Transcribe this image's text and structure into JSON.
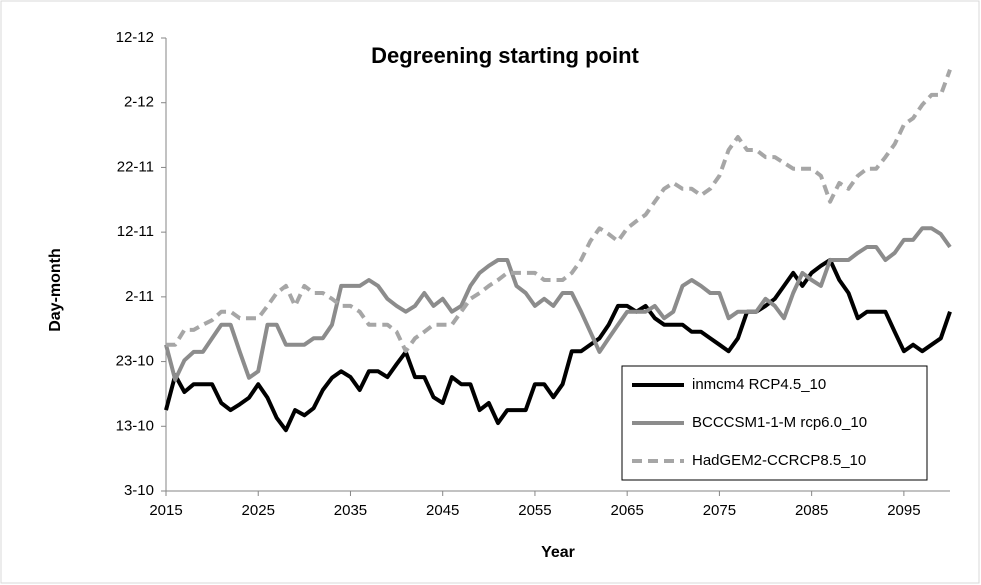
{
  "chart_data": {
    "type": "line",
    "title": "Degreening starting point",
    "x_label": "Year",
    "y_label": "Day-month",
    "x": [
      2015,
      2016,
      2017,
      2018,
      2019,
      2020,
      2021,
      2022,
      2023,
      2024,
      2025,
      2026,
      2027,
      2028,
      2029,
      2030,
      2031,
      2032,
      2033,
      2034,
      2035,
      2036,
      2037,
      2038,
      2039,
      2040,
      2041,
      2042,
      2043,
      2044,
      2045,
      2046,
      2047,
      2048,
      2049,
      2050,
      2051,
      2052,
      2053,
      2054,
      2055,
      2056,
      2057,
      2058,
      2059,
      2060,
      2061,
      2062,
      2063,
      2064,
      2065,
      2066,
      2067,
      2068,
      2069,
      2070,
      2071,
      2072,
      2073,
      2074,
      2075,
      2076,
      2077,
      2078,
      2079,
      2080,
      2081,
      2082,
      2083,
      2084,
      2085,
      2086,
      2087,
      2088,
      2089,
      2090,
      2091,
      2092,
      2093,
      2094,
      2095,
      2096,
      2097,
      2098,
      2099,
      2100
    ],
    "xlim": [
      2015,
      2100
    ],
    "xticks": [
      2015,
      2025,
      2035,
      2045,
      2055,
      2065,
      2075,
      2085,
      2095
    ],
    "ylim": [
      276,
      346
    ],
    "yticks": [
      {
        "value": 276,
        "label": "3-10"
      },
      {
        "value": 286,
        "label": "13-10"
      },
      {
        "value": 296,
        "label": "23-10"
      },
      {
        "value": 306,
        "label": "2-11"
      },
      {
        "value": 316,
        "label": "12-11"
      },
      {
        "value": 326,
        "label": "22-11"
      },
      {
        "value": 336,
        "label": "2-12"
      },
      {
        "value": 346,
        "label": "12-12"
      }
    ],
    "legend": "lower right",
    "series": [
      {
        "name": "inmcm4 RCP4.5_10",
        "color": "#000000",
        "dashed": false,
        "values": [
          288.5,
          293.9,
          291.3,
          292.5,
          292.5,
          292.5,
          289.6,
          288.5,
          289.4,
          290.4,
          292.5,
          290.4,
          287.3,
          285.4,
          288.5,
          287.7,
          288.8,
          291.6,
          293.5,
          294.5,
          293.6,
          291.6,
          294.5,
          294.5,
          293.6,
          295.6,
          297.5,
          293.6,
          293.6,
          290.5,
          289.6,
          293.6,
          292.5,
          292.5,
          288.5,
          289.6,
          286.5,
          288.5,
          288.5,
          288.5,
          292.5,
          292.5,
          290.5,
          292.5,
          297.6,
          297.6,
          298.6,
          299.6,
          301.7,
          304.6,
          304.6,
          303.7,
          304.6,
          302.7,
          301.7,
          301.7,
          301.7,
          300.6,
          300.6,
          299.6,
          298.6,
          297.6,
          299.6,
          303.7,
          303.7,
          304.6,
          305.7,
          307.7,
          309.7,
          307.7,
          309.7,
          310.8,
          311.7,
          308.6,
          306.6,
          302.7,
          303.7,
          303.7,
          303.7,
          300.6,
          297.6,
          298.6,
          297.6,
          298.6,
          299.6,
          303.7
        ]
      },
      {
        "name": "BCCCSM1-1-M rcp6.0_10",
        "color": "#8c8c8c",
        "dashed": false,
        "values": [
          298.6,
          293.2,
          296.2,
          297.5,
          297.5,
          299.6,
          301.7,
          301.7,
          297.5,
          293.5,
          294.5,
          301.7,
          301.7,
          298.6,
          298.6,
          298.6,
          299.6,
          299.6,
          301.7,
          307.7,
          307.7,
          307.7,
          308.6,
          307.7,
          305.7,
          304.6,
          303.7,
          304.6,
          306.6,
          304.6,
          305.7,
          303.7,
          304.6,
          307.7,
          309.7,
          310.8,
          311.7,
          311.7,
          307.7,
          306.6,
          304.6,
          305.7,
          304.6,
          306.6,
          306.6,
          303.7,
          300.6,
          297.5,
          299.6,
          301.7,
          303.7,
          303.7,
          303.7,
          304.6,
          302.7,
          303.7,
          307.7,
          308.6,
          307.7,
          306.6,
          306.6,
          302.7,
          303.7,
          303.7,
          303.7,
          305.7,
          304.6,
          302.7,
          306.6,
          309.7,
          308.6,
          307.7,
          311.7,
          311.7,
          311.7,
          312.8,
          313.7,
          313.7,
          311.7,
          312.8,
          314.8,
          314.8,
          316.6,
          316.6,
          315.7,
          313.7
        ]
      },
      {
        "name": "HadGEM2-CCRCP8.5_10",
        "color": "#a6a6a6",
        "dashed": true,
        "values": [
          298.6,
          298.6,
          300.9,
          300.9,
          301.7,
          302.4,
          303.7,
          303.7,
          302.7,
          302.7,
          302.7,
          304.6,
          306.6,
          307.7,
          304.6,
          307.7,
          306.6,
          306.6,
          305.7,
          304.6,
          304.6,
          303.7,
          301.7,
          301.7,
          301.7,
          300.6,
          297.6,
          299.6,
          300.6,
          301.7,
          301.7,
          301.7,
          303.7,
          305.7,
          306.6,
          307.7,
          308.6,
          309.7,
          309.7,
          309.7,
          309.7,
          308.6,
          308.6,
          308.6,
          309.7,
          311.7,
          314.6,
          316.6,
          315.7,
          314.6,
          316.6,
          317.7,
          318.7,
          320.7,
          322.7,
          323.6,
          322.7,
          322.7,
          321.7,
          322.7,
          324.7,
          328.7,
          330.7,
          328.7,
          328.7,
          327.6,
          327.6,
          326.7,
          325.8,
          325.8,
          325.8,
          324.7,
          320.7,
          323.6,
          322.7,
          324.7,
          325.8,
          325.8,
          327.6,
          329.6,
          332.6,
          333.6,
          335.7,
          337.2,
          337.2,
          341.1
        ]
      }
    ]
  }
}
